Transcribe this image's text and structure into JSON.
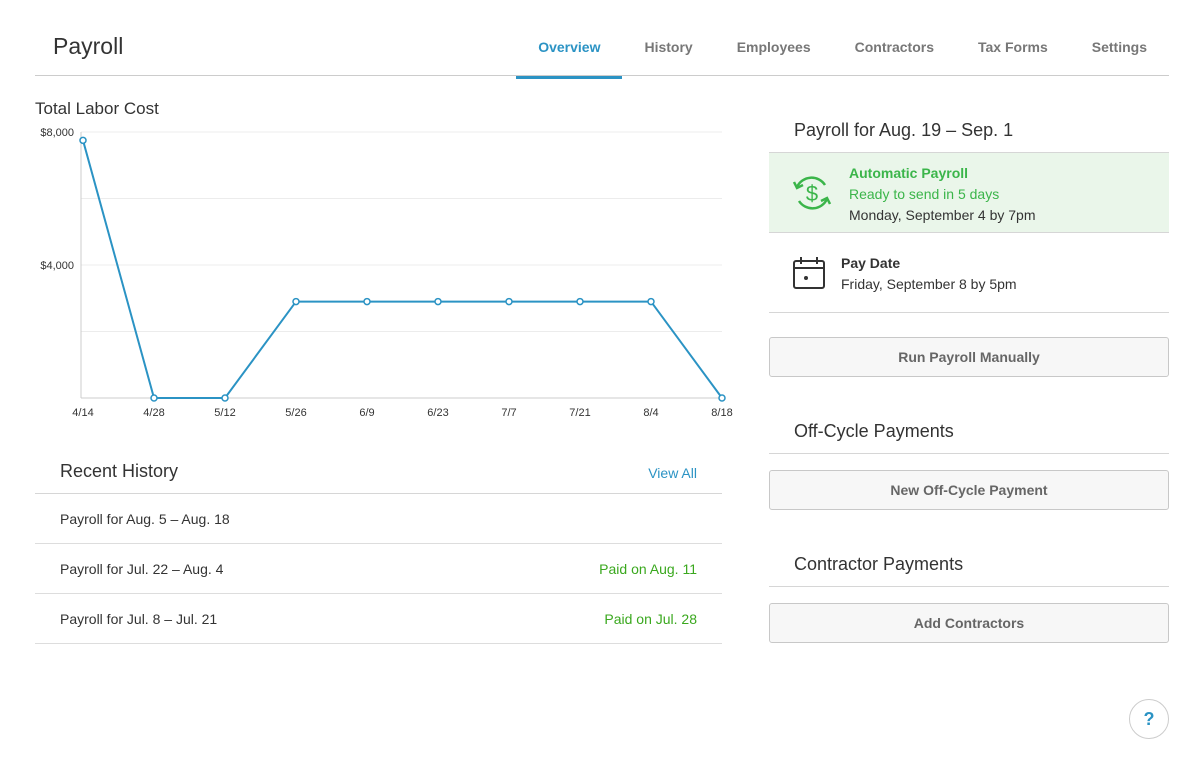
{
  "header": {
    "title": "Payroll",
    "tabs": [
      "Overview",
      "History",
      "Employees",
      "Contractors",
      "Tax Forms",
      "Settings"
    ],
    "active_tab": 0
  },
  "chart_data": {
    "type": "line",
    "title": "Total Labor Cost",
    "categories": [
      "4/14",
      "4/28",
      "5/12",
      "5/26",
      "6/9",
      "6/23",
      "7/7",
      "7/21",
      "8/4",
      "8/18"
    ],
    "values": [
      7750,
      0,
      0,
      2900,
      2900,
      2900,
      2900,
      2900,
      2900,
      0
    ],
    "color": "#2b93c4",
    "ylim": [
      0,
      8000
    ],
    "yticks": [
      {
        "value": 4000,
        "label": "$4,000"
      },
      {
        "value": 8000,
        "label": "$8,000"
      }
    ],
    "minor_grid": [
      2000,
      6000
    ],
    "grid": true
  },
  "history": {
    "title": "Recent History",
    "link": "View All",
    "rows": [
      {
        "label": "Payroll for Aug. 5 – Aug. 18"
      },
      {
        "label": "Payroll for Jul. 22 – Aug. 4",
        "status": "Paid on Aug. 11"
      },
      {
        "label": "Payroll for Jul. 8 – Jul. 21",
        "status": "Paid on Jul. 28"
      }
    ]
  },
  "schedule": {
    "title": "Payroll for Aug. 19 – Sep. 1",
    "automatic": {
      "title": "Automatic Payroll",
      "status": "Ready to send in 5 days",
      "deadline": "Monday, September 4 by 7pm"
    },
    "pay_date": {
      "title": "Pay Date",
      "date": "Friday, September 8 by 5pm"
    },
    "button": "Run Payroll Manually"
  },
  "off_cycle": {
    "title": "Off-Cycle Payments",
    "button": "New Off-Cycle Payment"
  },
  "contractors": {
    "title": "Contractor Payments",
    "button": "Add Contractors"
  },
  "help": "?"
}
